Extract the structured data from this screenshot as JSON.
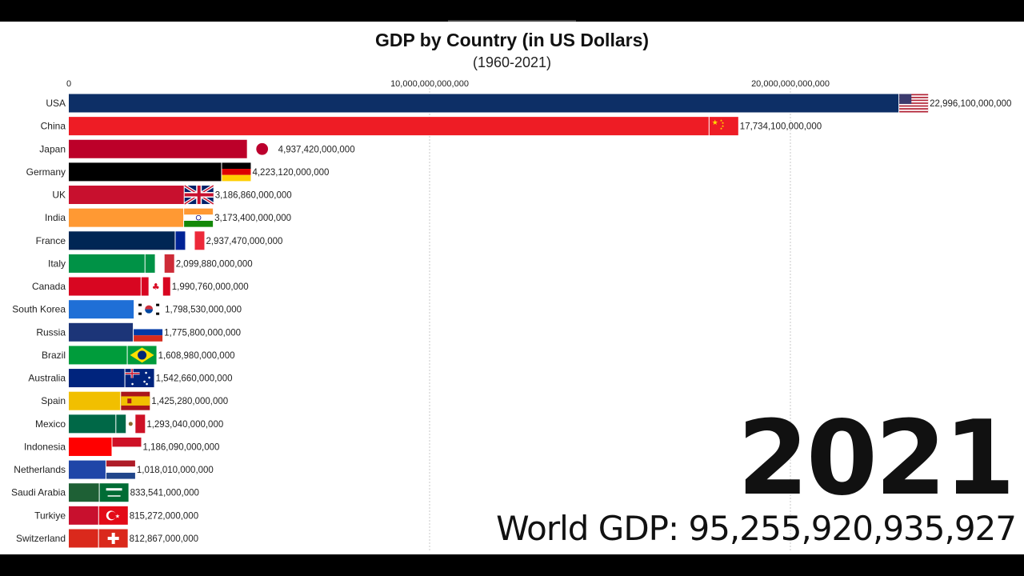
{
  "title": "GDP by Country (in US Dollars)",
  "subtitle": "(1960-2021)",
  "year": "2021",
  "world_gdp": "World GDP: 95,255,920,935,927",
  "chart_data": {
    "type": "bar",
    "orientation": "horizontal",
    "title": "GDP by Country (in US Dollars)",
    "subtitle": "(1960-2021)",
    "x_ticks": [
      0,
      10000000000000,
      20000000000000
    ],
    "x_tick_labels": [
      "0",
      "10,000,000,000,000",
      "20,000,000,000,000"
    ],
    "xlim": [
      0,
      23000000000000
    ],
    "grid": true,
    "categories": [
      "USA",
      "China",
      "Japan",
      "Germany",
      "UK",
      "India",
      "France",
      "Italy",
      "Canada",
      "South Korea",
      "Russia",
      "Brazil",
      "Australia",
      "Spain",
      "Mexico",
      "Indonesia",
      "Netherlands",
      "Saudi Arabia",
      "Turkiye",
      "Switzerland"
    ],
    "values": [
      22996100000000,
      17734100000000,
      4937420000000,
      4223120000000,
      3186860000000,
      3173400000000,
      2937470000000,
      2099880000000,
      1990760000000,
      1798530000000,
      1775800000000,
      1608980000000,
      1542660000000,
      1425280000000,
      1293040000000,
      1186090000000,
      1018010000000,
      833541000000,
      815272000000,
      812867000000
    ],
    "value_labels": [
      "22,996,100,000,000",
      "17,734,100,000,000",
      "4,937,420,000,000",
      "4,223,120,000,000",
      "3,186,860,000,000",
      "3,173,400,000,000",
      "2,937,470,000,000",
      "2,099,880,000,000",
      "1,990,760,000,000",
      "1,798,530,000,000",
      "1,775,800,000,000",
      "1,608,980,000,000",
      "1,542,660,000,000",
      "1,425,280,000,000",
      "1,293,040,000,000",
      "1,186,090,000,000",
      "1,018,010,000,000",
      "833,541,000,000",
      "815,272,000,000",
      "812,867,000,000"
    ],
    "colors": [
      "#0d2f66",
      "#ee1c25",
      "#bc0029",
      "#000000",
      "#c8102e",
      "#ff9933",
      "#002654",
      "#009246",
      "#d80621",
      "#1f6fd6",
      "#1c3578",
      "#009c3b",
      "#00247d",
      "#f1bf00",
      "#006847",
      "#ff0000",
      "#1f46a8",
      "#1e6035",
      "#c8102e",
      "#da291c"
    ],
    "flags": [
      "us-flag-icon",
      "cn-flag-icon",
      "jp-flag-icon",
      "de-flag-icon",
      "gb-flag-icon",
      "in-flag-icon",
      "fr-flag-icon",
      "it-flag-icon",
      "ca-flag-icon",
      "kr-flag-icon",
      "ru-flag-icon",
      "br-flag-icon",
      "au-flag-icon",
      "es-flag-icon",
      "mx-flag-icon",
      "id-flag-icon",
      "nl-flag-icon",
      "sa-flag-icon",
      "tr-flag-icon",
      "ch-flag-icon"
    ]
  }
}
